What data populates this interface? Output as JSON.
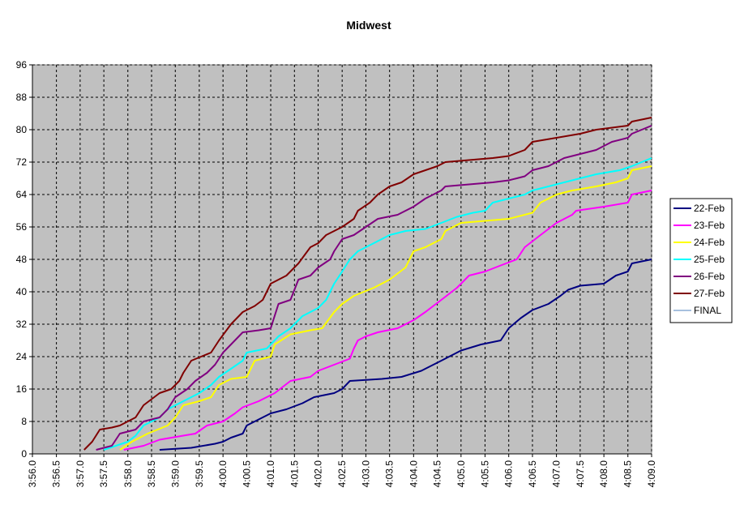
{
  "chart_data": {
    "type": "line",
    "title": "Midwest",
    "xlabel": "",
    "ylabel": "",
    "x_unit": "hours",
    "xlim": [
      3.9333,
      4.15
    ],
    "ylim": [
      0,
      96
    ],
    "yticks": [
      0,
      8,
      16,
      24,
      32,
      40,
      48,
      56,
      64,
      72,
      80,
      88,
      96
    ],
    "xtick_labels": [
      "3:56.0",
      "3:56.5",
      "3:57.0",
      "3:57.5",
      "3:58.0",
      "3:58.5",
      "3:59.0",
      "3:59.5",
      "4:00.0",
      "4:00.5",
      "4:01.0",
      "4:01.5",
      "4:02.0",
      "4:02.5",
      "4:03.0",
      "4:03.5",
      "4:04.0",
      "4:04.5",
      "4:05.0",
      "4:05.5",
      "4:06.0",
      "4:06.5",
      "4:07.0",
      "4:07.5",
      "4:08.0",
      "4:08.5",
      "4:09.0"
    ],
    "xticks": [
      3.9333,
      3.9417,
      3.95,
      3.9583,
      3.9667,
      3.975,
      3.9833,
      3.9917,
      4.0,
      4.0083,
      4.0167,
      4.025,
      4.0333,
      4.0417,
      4.05,
      4.0583,
      4.0667,
      4.075,
      4.0833,
      4.0917,
      4.1,
      4.1083,
      4.1167,
      4.125,
      4.1333,
      4.1417,
      4.15
    ],
    "grid": true,
    "plot_background": "#c0c0c0",
    "legend_position": "right",
    "series": [
      {
        "name": "22-Feb",
        "color": "#000080",
        "points": [
          [
            3.9778,
            1
          ],
          [
            3.9889,
            1.5
          ],
          [
            3.9972,
            2.5
          ],
          [
            4.0,
            3
          ],
          [
            4.0028,
            4
          ],
          [
            4.0069,
            5
          ],
          [
            4.0083,
            7
          ],
          [
            4.0125,
            8.5
          ],
          [
            4.0167,
            10
          ],
          [
            4.0222,
            11
          ],
          [
            4.0278,
            12.5
          ],
          [
            4.0319,
            14
          ],
          [
            4.0389,
            15
          ],
          [
            4.0417,
            16
          ],
          [
            4.0444,
            18
          ],
          [
            4.0556,
            18.5
          ],
          [
            4.0625,
            19
          ],
          [
            4.0694,
            20.5
          ],
          [
            4.0764,
            23
          ],
          [
            4.0833,
            25.5
          ],
          [
            4.0903,
            27
          ],
          [
            4.0972,
            28
          ],
          [
            4.1,
            31
          ],
          [
            4.1042,
            33.5
          ],
          [
            4.1083,
            35.5
          ],
          [
            4.1139,
            37
          ],
          [
            4.1181,
            39
          ],
          [
            4.1208,
            40.5
          ],
          [
            4.125,
            41.5
          ],
          [
            4.1333,
            42
          ],
          [
            4.1375,
            44
          ],
          [
            4.1417,
            45
          ],
          [
            4.1431,
            47
          ],
          [
            4.15,
            48
          ]
        ]
      },
      {
        "name": "23-Feb",
        "color": "#ff00ff",
        "points": [
          [
            3.9653,
            1
          ],
          [
            3.9722,
            2
          ],
          [
            3.9778,
            3.5
          ],
          [
            3.9861,
            4.5
          ],
          [
            3.9903,
            5
          ],
          [
            3.9944,
            7
          ],
          [
            4.0,
            8
          ],
          [
            4.0042,
            10
          ],
          [
            4.0069,
            11.5
          ],
          [
            4.0125,
            13
          ],
          [
            4.0181,
            15
          ],
          [
            4.0236,
            18
          ],
          [
            4.0306,
            19
          ],
          [
            4.0333,
            20.5
          ],
          [
            4.0389,
            22
          ],
          [
            4.0444,
            23.5
          ],
          [
            4.0458,
            26
          ],
          [
            4.0472,
            28
          ],
          [
            4.05,
            29
          ],
          [
            4.0542,
            30
          ],
          [
            4.0611,
            31
          ],
          [
            4.0667,
            33
          ],
          [
            4.0708,
            35
          ],
          [
            4.0764,
            38
          ],
          [
            4.0819,
            41
          ],
          [
            4.0861,
            44
          ],
          [
            4.0917,
            45
          ],
          [
            4.0972,
            46.5
          ],
          [
            4.1028,
            48
          ],
          [
            4.1056,
            51
          ],
          [
            4.1111,
            54
          ],
          [
            4.1167,
            57
          ],
          [
            4.1222,
            59
          ],
          [
            4.1236,
            60
          ],
          [
            4.1333,
            61
          ],
          [
            4.1417,
            62
          ],
          [
            4.1431,
            64
          ],
          [
            4.15,
            65
          ]
        ]
      },
      {
        "name": "24-Feb",
        "color": "#ffff00",
        "points": [
          [
            3.9639,
            1
          ],
          [
            3.9681,
            3
          ],
          [
            3.9736,
            5
          ],
          [
            3.9806,
            7
          ],
          [
            3.9833,
            9
          ],
          [
            3.9861,
            12
          ],
          [
            3.9917,
            13
          ],
          [
            3.9958,
            14
          ],
          [
            3.9986,
            17
          ],
          [
            4.0028,
            18.5
          ],
          [
            4.0083,
            19
          ],
          [
            4.0111,
            23
          ],
          [
            4.0167,
            24
          ],
          [
            4.0181,
            27
          ],
          [
            4.0236,
            29.5
          ],
          [
            4.0306,
            30.5
          ],
          [
            4.0347,
            31
          ],
          [
            4.0389,
            35
          ],
          [
            4.0417,
            37
          ],
          [
            4.0458,
            39
          ],
          [
            4.0528,
            41
          ],
          [
            4.0583,
            43
          ],
          [
            4.0639,
            46
          ],
          [
            4.0667,
            50
          ],
          [
            4.0708,
            51
          ],
          [
            4.0764,
            53
          ],
          [
            4.0778,
            55
          ],
          [
            4.0833,
            57
          ],
          [
            4.0917,
            57.5
          ],
          [
            4.1,
            58
          ],
          [
            4.1083,
            59.5
          ],
          [
            4.1111,
            62
          ],
          [
            4.1167,
            64
          ],
          [
            4.1222,
            65
          ],
          [
            4.1306,
            66
          ],
          [
            4.1375,
            67
          ],
          [
            4.1417,
            68
          ],
          [
            4.1431,
            70
          ],
          [
            4.15,
            71
          ]
        ]
      },
      {
        "name": "25-Feb",
        "color": "#00ffff",
        "points": [
          [
            3.9583,
            1
          ],
          [
            3.9625,
            2
          ],
          [
            3.9667,
            3
          ],
          [
            3.9694,
            4.5
          ],
          [
            3.9722,
            7
          ],
          [
            3.9778,
            9
          ],
          [
            3.9806,
            11
          ],
          [
            3.9861,
            13
          ],
          [
            3.9917,
            15
          ],
          [
            3.9958,
            17
          ],
          [
            3.9986,
            19
          ],
          [
            4.0028,
            21
          ],
          [
            4.0069,
            23
          ],
          [
            4.0083,
            25
          ],
          [
            4.0153,
            26
          ],
          [
            4.0194,
            29
          ],
          [
            4.0236,
            31
          ],
          [
            4.0278,
            34
          ],
          [
            4.0333,
            36
          ],
          [
            4.0361,
            38
          ],
          [
            4.0389,
            42
          ],
          [
            4.0417,
            45
          ],
          [
            4.0444,
            48
          ],
          [
            4.0472,
            50
          ],
          [
            4.0528,
            52
          ],
          [
            4.0583,
            54
          ],
          [
            4.0639,
            55
          ],
          [
            4.0708,
            55.5
          ],
          [
            4.0764,
            57
          ],
          [
            4.0819,
            58.5
          ],
          [
            4.0875,
            59.5
          ],
          [
            4.0917,
            60
          ],
          [
            4.0944,
            62
          ],
          [
            4.1,
            63
          ],
          [
            4.1056,
            64
          ],
          [
            4.1083,
            65
          ],
          [
            4.1139,
            66
          ],
          [
            4.1194,
            67
          ],
          [
            4.125,
            68
          ],
          [
            4.1306,
            69
          ],
          [
            4.1389,
            70
          ],
          [
            4.1431,
            71
          ],
          [
            4.15,
            73
          ]
        ]
      },
      {
        "name": "26-Feb",
        "color": "#800080",
        "points": [
          [
            3.9556,
            1
          ],
          [
            3.9611,
            2
          ],
          [
            3.9639,
            5
          ],
          [
            3.9694,
            6
          ],
          [
            3.9722,
            8
          ],
          [
            3.9778,
            9
          ],
          [
            3.9806,
            11
          ],
          [
            3.9833,
            14
          ],
          [
            3.9875,
            16
          ],
          [
            3.9903,
            18
          ],
          [
            3.9944,
            20
          ],
          [
            3.9972,
            22
          ],
          [
            4.0,
            25
          ],
          [
            4.0028,
            27
          ],
          [
            4.0069,
            30
          ],
          [
            4.0125,
            30.5
          ],
          [
            4.0167,
            31
          ],
          [
            4.0194,
            37
          ],
          [
            4.0236,
            38
          ],
          [
            4.0264,
            43
          ],
          [
            4.0306,
            44
          ],
          [
            4.0333,
            46
          ],
          [
            4.0375,
            48
          ],
          [
            4.0389,
            50
          ],
          [
            4.0417,
            53
          ],
          [
            4.0458,
            54
          ],
          [
            4.05,
            56
          ],
          [
            4.0542,
            58
          ],
          [
            4.0611,
            59
          ],
          [
            4.0667,
            61
          ],
          [
            4.0708,
            63
          ],
          [
            4.0764,
            65
          ],
          [
            4.0778,
            66
          ],
          [
            4.0861,
            66.5
          ],
          [
            4.0944,
            67
          ],
          [
            4.1,
            67.5
          ],
          [
            4.1056,
            68.5
          ],
          [
            4.1083,
            70
          ],
          [
            4.1139,
            71
          ],
          [
            4.1194,
            73
          ],
          [
            4.125,
            74
          ],
          [
            4.1306,
            75
          ],
          [
            4.1361,
            77
          ],
          [
            4.1417,
            78
          ],
          [
            4.1431,
            79
          ],
          [
            4.15,
            81
          ]
        ]
      },
      {
        "name": "27-Feb",
        "color": "#800000",
        "points": [
          [
            3.9514,
            1
          ],
          [
            3.9542,
            3
          ],
          [
            3.9569,
            6
          ],
          [
            3.9611,
            6.5
          ],
          [
            3.9639,
            7
          ],
          [
            3.9694,
            9
          ],
          [
            3.9722,
            12
          ],
          [
            3.9778,
            15
          ],
          [
            3.9819,
            16
          ],
          [
            3.9847,
            18
          ],
          [
            3.9861,
            20
          ],
          [
            3.9889,
            23
          ],
          [
            3.9958,
            25
          ],
          [
            3.9986,
            28
          ],
          [
            4.0028,
            32
          ],
          [
            4.0069,
            35
          ],
          [
            4.0111,
            36.5
          ],
          [
            4.0139,
            38
          ],
          [
            4.0167,
            42
          ],
          [
            4.0222,
            44
          ],
          [
            4.0264,
            47
          ],
          [
            4.0306,
            51
          ],
          [
            4.0333,
            52
          ],
          [
            4.0361,
            54
          ],
          [
            4.0417,
            56
          ],
          [
            4.0458,
            58
          ],
          [
            4.0472,
            60
          ],
          [
            4.0514,
            62
          ],
          [
            4.0542,
            64
          ],
          [
            4.0583,
            66
          ],
          [
            4.0625,
            67
          ],
          [
            4.0667,
            69
          ],
          [
            4.075,
            71
          ],
          [
            4.0778,
            72
          ],
          [
            4.0861,
            72.5
          ],
          [
            4.0944,
            73
          ],
          [
            4.1,
            73.5
          ],
          [
            4.1056,
            75
          ],
          [
            4.1083,
            77
          ],
          [
            4.1167,
            78
          ],
          [
            4.125,
            79
          ],
          [
            4.1306,
            80
          ],
          [
            4.1417,
            81
          ],
          [
            4.1431,
            82
          ],
          [
            4.15,
            83
          ]
        ]
      },
      {
        "name": "FINAL",
        "color": "#4f81bd",
        "points": []
      }
    ]
  }
}
